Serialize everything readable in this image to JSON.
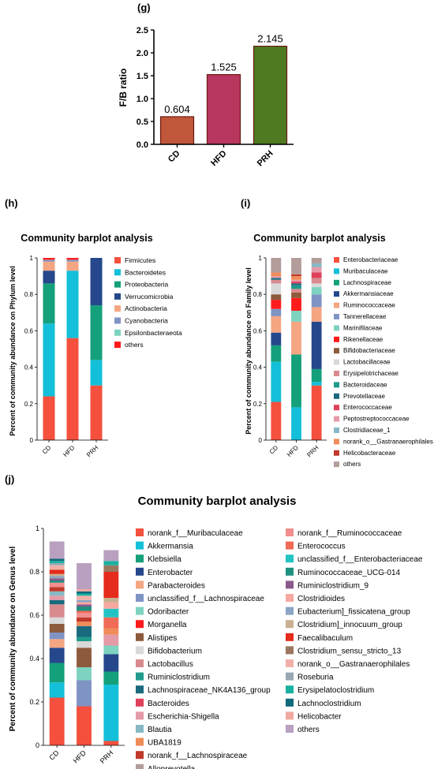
{
  "colors": {
    "bar_g": [
      "#c0563a",
      "#b8375f",
      "#4f7a22"
    ],
    "palette": [
      "#f4503d",
      "#14bfd9",
      "#14a07a",
      "#26478c",
      "#f4a582",
      "#8094c4",
      "#7ed3c0",
      "#ff1b1b",
      "#8c5a3c",
      "#d9d9d9",
      "#d88a8e",
      "#1f9a8b",
      "#1a6a7e",
      "#e0405a",
      "#e59aa8",
      "#86b8c6",
      "#f08c5a",
      "#c0392b",
      "#b39c9a",
      "#f28e8e",
      "#f06a55",
      "#24c3c3",
      "#1f8f80",
      "#8a5a8a",
      "#f7a8a0",
      "#8aa6c4",
      "#c8b090",
      "#e52b1b",
      "#9a7860",
      "#f0b0a8",
      "#9aa8b4",
      "#1ab0a0",
      "#0f6a7a",
      "#f0a8a0",
      "#b9a0c0"
    ]
  },
  "panels": {
    "g": {
      "letter": "(g)",
      "chart_data": {
        "type": "bar",
        "categories": [
          "CD",
          "HFD",
          "PRH"
        ],
        "values": [
          0.604,
          1.525,
          2.145
        ],
        "data_labels": [
          "0.604",
          "1.525",
          "2.145"
        ],
        "ylabel": "F/B ratio",
        "ylim": [
          0,
          2.5
        ],
        "yticks": [
          "0.0",
          "0.5",
          "1.0",
          "1.5",
          "2.0",
          "2.5"
        ]
      }
    },
    "h": {
      "letter": "(h)",
      "chart_data": {
        "type": "bar",
        "stacked": true,
        "title": "Community barplot analysis",
        "ylabel": "Percent of community abundance on Phylum level",
        "categories": [
          "CD",
          "HFD",
          "PRH"
        ],
        "ylim": [
          0,
          1
        ],
        "yticks": [
          "0",
          "0.2",
          "0.4",
          "0.6",
          "0.8",
          "1"
        ],
        "series": [
          {
            "name": "Firmicutes",
            "values": [
              0.24,
              0.56,
              0.3
            ]
          },
          {
            "name": "Bacteroidetes",
            "values": [
              0.4,
              0.37,
              0.14
            ]
          },
          {
            "name": "Proteobacteria",
            "values": [
              0.22,
              0.0,
              0.3
            ]
          },
          {
            "name": "Verrucomicrobia",
            "values": [
              0.07,
              0.0,
              0.26
            ]
          },
          {
            "name": "Actinobacteria",
            "values": [
              0.05,
              0.05,
              0.0
            ]
          },
          {
            "name": "Cyanobacteria",
            "values": [
              0.01,
              0.01,
              0.0
            ]
          },
          {
            "name": "Epsilonbacteraeota",
            "values": [
              0.0,
              0.0,
              0.0
            ]
          },
          {
            "name": "others",
            "values": [
              0.01,
              0.01,
              0.0
            ]
          }
        ]
      }
    },
    "i": {
      "letter": "(i)",
      "chart_data": {
        "type": "bar",
        "stacked": true,
        "title": "Community barplot analysis",
        "ylabel": "Percent of community abundance on Family level",
        "categories": [
          "CD",
          "HFD",
          "PRH"
        ],
        "ylim": [
          0,
          1
        ],
        "yticks": [
          "0",
          "0.2",
          "0.4",
          "0.6",
          "0.8",
          "1"
        ],
        "series": [
          {
            "name": "Enterobacteriaceae",
            "values": [
              0.21,
              0.0,
              0.3
            ]
          },
          {
            "name": "Muribaculaceae",
            "values": [
              0.22,
              0.18,
              0.02
            ]
          },
          {
            "name": "Lachnospiraceae",
            "values": [
              0.09,
              0.29,
              0.07
            ]
          },
          {
            "name": "Akkermansiaceae",
            "values": [
              0.07,
              0.0,
              0.26
            ]
          },
          {
            "name": "Ruminococcaceae",
            "values": [
              0.09,
              0.18,
              0.08
            ]
          },
          {
            "name": "Tannerellaceae",
            "values": [
              0.04,
              0.0,
              0.07
            ]
          },
          {
            "name": "Marinifilaceae",
            "values": [
              0.0,
              0.06,
              0.04
            ]
          },
          {
            "name": "Rikenellaceae",
            "values": [
              0.05,
              0.07,
              0.0
            ]
          },
          {
            "name": "Bifidobacteriaceae",
            "values": [
              0.03,
              0.03,
              0.0
            ]
          },
          {
            "name": "Lactobacillaceae",
            "values": [
              0.06,
              0.0,
              0.02
            ]
          },
          {
            "name": "Erysipelotrichaceae",
            "values": [
              0.02,
              0.02,
              0.03
            ]
          },
          {
            "name": "Bacteroidaceae",
            "values": [
              0.0,
              0.02,
              0.0
            ]
          },
          {
            "name": "Prevotellaceae",
            "values": [
              0.01,
              0.01,
              0.0
            ]
          },
          {
            "name": "Enterococcaceae",
            "values": [
              0.0,
              0.01,
              0.03
            ]
          },
          {
            "name": "Peptostreptococcaceae",
            "values": [
              0.01,
              0.01,
              0.03
            ]
          },
          {
            "name": "Clostridiaceae_1",
            "values": [
              0.0,
              0.0,
              0.02
            ]
          },
          {
            "name": "norank_o__Gastranaerophilales",
            "values": [
              0.02,
              0.02,
              0.0
            ]
          },
          {
            "name": "Helicobacteraceae",
            "values": [
              0.0,
              0.01,
              0.0
            ]
          },
          {
            "name": "others",
            "values": [
              0.08,
              0.09,
              0.03
            ]
          }
        ]
      }
    },
    "j": {
      "letter": "(j)",
      "chart_data": {
        "type": "bar",
        "stacked": true,
        "title": "Community barplot analysis",
        "ylabel": "Percent of community abundance on Genus level",
        "categories": [
          "CD",
          "HFD",
          "PRH"
        ],
        "ylim": [
          0,
          1
        ],
        "yticks": [
          "0",
          "0.2",
          "0.4",
          "0.6",
          "0.8",
          "1"
        ],
        "series": [
          {
            "name": "norank_f__Muribaculaceae",
            "values": [
              0.22,
              0.18,
              0.02
            ]
          },
          {
            "name": "Akkermansia",
            "values": [
              0.07,
              0.0,
              0.26
            ]
          },
          {
            "name": "Klebsiella",
            "values": [
              0.09,
              0.0,
              0.06
            ]
          },
          {
            "name": "Enterobacter",
            "values": [
              0.07,
              0.0,
              0.08
            ]
          },
          {
            "name": "Parabacteroides",
            "values": [
              0.04,
              0.0,
              0.0
            ]
          },
          {
            "name": "unclassified_f__Lachnospiraceae",
            "values": [
              0.03,
              0.12,
              0.0
            ]
          },
          {
            "name": "Odoribacter",
            "values": [
              0.0,
              0.06,
              0.04
            ]
          },
          {
            "name": "Morganella",
            "values": [
              0.0,
              0.0,
              0.0
            ]
          },
          {
            "name": "Alistipes",
            "values": [
              0.04,
              0.09,
              0.0
            ]
          },
          {
            "name": "Bifidobacterium",
            "values": [
              0.03,
              0.03,
              0.0
            ]
          },
          {
            "name": "Lactobacillus",
            "values": [
              0.06,
              0.0,
              0.0
            ]
          },
          {
            "name": "Ruminiclostridium",
            "values": [
              0.0,
              0.02,
              0.0
            ]
          },
          {
            "name": "Lachnospiraceae_NK4A136_group",
            "values": [
              0.02,
              0.05,
              0.0
            ]
          },
          {
            "name": "Bacteroides",
            "values": [
              0.0,
              0.0,
              0.0
            ]
          },
          {
            "name": "Escherichia-Shigella",
            "values": [
              0.02,
              0.0,
              0.05
            ]
          },
          {
            "name": "Blautia",
            "values": [
              0.02,
              0.0,
              0.0
            ]
          },
          {
            "name": "UBA1819",
            "values": [
              0.0,
              0.02,
              0.03
            ]
          },
          {
            "name": "norank_f__Lachnospiraceae",
            "values": [
              0.02,
              0.02,
              0.0
            ]
          },
          {
            "name": "Alloprevotella",
            "values": [
              0.0,
              0.0,
              0.0
            ]
          },
          {
            "name": "norank_f__Ruminococcaceae",
            "values": [
              0.02,
              0.02,
              0.0
            ]
          },
          {
            "name": "Enterococcus",
            "values": [
              0.0,
              0.01,
              0.05
            ]
          },
          {
            "name": "unclassified_f__Enterobacteriaceae",
            "values": [
              0.0,
              0.0,
              0.04
            ]
          },
          {
            "name": "Ruminococcaceae_UCG-014",
            "values": [
              0.01,
              0.02,
              0.0
            ]
          },
          {
            "name": "Ruminiclostridium_9",
            "values": [
              0.01,
              0.01,
              0.0
            ]
          },
          {
            "name": "Clostridioides",
            "values": [
              0.0,
              0.01,
              0.03
            ]
          },
          {
            "name": "Eubacterium]_fissicatena_group",
            "values": [
              0.01,
              0.01,
              0.0
            ]
          },
          {
            "name": "Clostridium]_innocuum_group",
            "values": [
              0.01,
              0.0,
              0.02
            ]
          },
          {
            "name": "Faecalibaculum",
            "values": [
              0.02,
              0.0,
              0.12
            ]
          },
          {
            "name": "Clostridium_sensu_stricto_13",
            "values": [
              0.0,
              0.0,
              0.03
            ]
          },
          {
            "name": "norank_o__Gastranaerophilales",
            "values": [
              0.02,
              0.02,
              0.0
            ]
          },
          {
            "name": "Roseburia",
            "values": [
              0.01,
              0.0,
              0.0
            ]
          },
          {
            "name": "Erysipelatoclostridium",
            "values": [
              0.01,
              0.01,
              0.02
            ]
          },
          {
            "name": "Lachnoclostridium",
            "values": [
              0.01,
              0.01,
              0.0
            ]
          },
          {
            "name": "Helicobacter",
            "values": [
              0.0,
              0.01,
              0.0
            ]
          },
          {
            "name": "others",
            "values": [
              0.08,
              0.12,
              0.05
            ]
          }
        ]
      }
    }
  }
}
